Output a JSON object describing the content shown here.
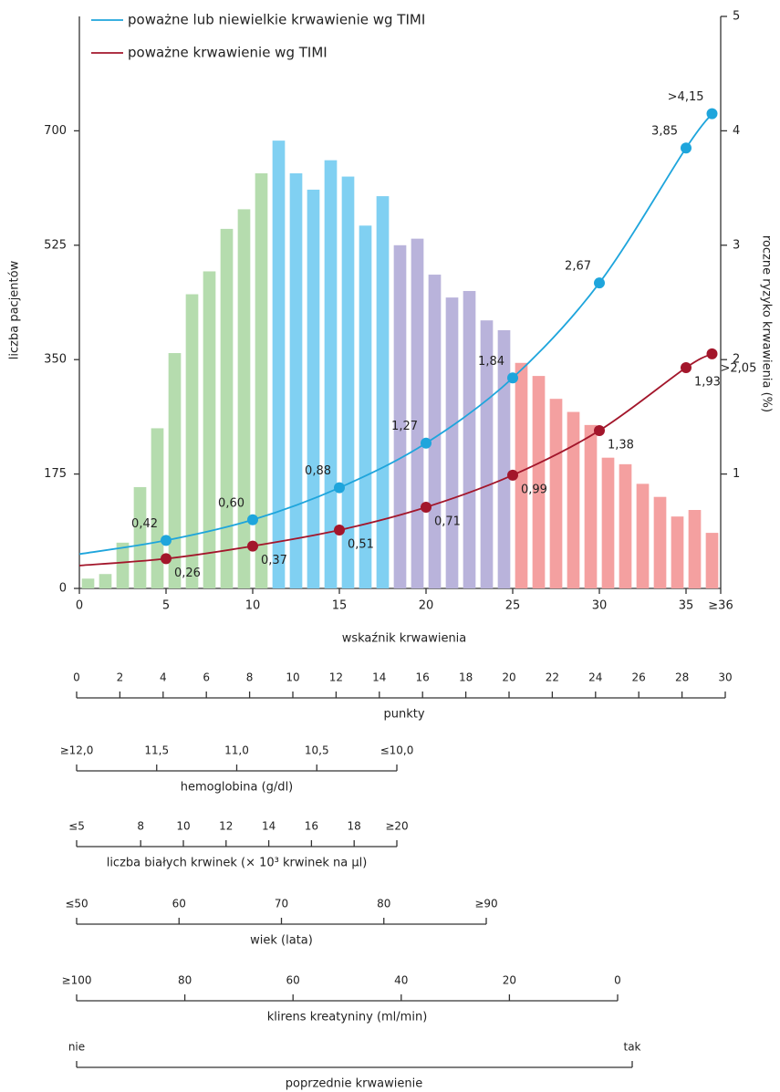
{
  "chart_data": {
    "type": "histogram",
    "xlabel": "wskaźnik krwawienia",
    "ylabel": "liczba pacjentów",
    "y2label": "roczne ryzyko krwawienia (%)",
    "bins": [
      0,
      1,
      2,
      3,
      4,
      5,
      6,
      7,
      8,
      9,
      10,
      11,
      12,
      13,
      14,
      15,
      16,
      17,
      18,
      19,
      20,
      21,
      22,
      23,
      24,
      25,
      26,
      27,
      28,
      29,
      30,
      31,
      32,
      33,
      34,
      35,
      36,
      37
    ],
    "counts": [
      15,
      22,
      70,
      155,
      245,
      360,
      450,
      485,
      550,
      580,
      635,
      685,
      635,
      610,
      655,
      630,
      555,
      600,
      525,
      535,
      480,
      445,
      455,
      410,
      395,
      345,
      325,
      290,
      270,
      250,
      200,
      190,
      160,
      140,
      110,
      120,
      85
    ],
    "bar_colors": [
      "#b5dcae",
      "#b5dcae",
      "#b5dcae",
      "#b5dcae",
      "#b5dcae",
      "#b5dcae",
      "#b5dcae",
      "#b5dcae",
      "#b5dcae",
      "#b5dcae",
      "#b5dcae",
      "#80d0f2",
      "#80d0f2",
      "#80d0f2",
      "#80d0f2",
      "#80d0f2",
      "#80d0f2",
      "#80d0f2",
      "#b9b3db",
      "#b9b3db",
      "#b9b3db",
      "#b9b3db",
      "#b9b3db",
      "#b9b3db",
      "#b9b3db",
      "#f4a0a0",
      "#f4a0a0",
      "#f4a0a0",
      "#f4a0a0",
      "#f4a0a0",
      "#f4a0a0",
      "#f4a0a0",
      "#f4a0a0",
      "#f4a0a0",
      "#f4a0a0",
      "#f4a0a0",
      "#f4a0a0"
    ],
    "series": [
      {
        "name": "poważne lub niewielkie krwawienie wg TIMI",
        "color": "#1ea5dc",
        "axis": "y2",
        "x": [
          0,
          5,
          10,
          15,
          20,
          25,
          30,
          35,
          36.5
        ],
        "values": [
          0.3,
          0.42,
          0.6,
          0.88,
          1.27,
          1.84,
          2.67,
          3.85,
          4.15
        ],
        "value_labels": [
          null,
          "0,42",
          "0,60",
          "0,88",
          "1,27",
          "1,84",
          "2,67",
          "3,85",
          ">4,15"
        ]
      },
      {
        "name": "poważne krwawienie wg TIMI",
        "color": "#a3162b",
        "axis": "y2",
        "x": [
          0,
          5,
          10,
          15,
          20,
          25,
          30,
          35,
          36.5
        ],
        "values": [
          0.2,
          0.26,
          0.37,
          0.51,
          0.71,
          0.99,
          1.38,
          1.93,
          2.05
        ],
        "value_labels": [
          null,
          "0,26",
          "0,37",
          "0,51",
          "0,71",
          "0,99",
          "1,38",
          "1,93",
          ">2,05"
        ]
      }
    ],
    "xlim": [
      0,
      37
    ],
    "xticks": [
      0,
      5,
      10,
      15,
      20,
      25,
      30,
      35,
      {
        "value": 37,
        "label": "≥36"
      }
    ],
    "ylim": [
      0,
      875
    ],
    "yticks": [
      0,
      175,
      350,
      525,
      700
    ],
    "y2lim": [
      0,
      5
    ],
    "y2ticks": [
      1,
      2,
      3,
      4,
      5
    ],
    "scales": [
      {
        "title": "punkty",
        "lim": [
          0,
          30
        ],
        "ticks": [
          0,
          2,
          4,
          6,
          8,
          10,
          12,
          14,
          16,
          18,
          20,
          22,
          24,
          26,
          28,
          30
        ]
      },
      {
        "title": "hemoglobina (g/dl)",
        "lim": [
          12,
          10
        ],
        "ticks": [
          {
            "value": 12,
            "label": "≥12,0"
          },
          {
            "value": 11.5,
            "label": "11,5"
          },
          {
            "value": 11,
            "label": "11,0"
          },
          {
            "value": 10.5,
            "label": "10,5"
          },
          {
            "value": 10,
            "label": "≤10,0"
          }
        ]
      },
      {
        "title": "liczba białych krwinek (× 10³ krwinek na µl)",
        "lim": [
          5,
          20
        ],
        "ticks": [
          {
            "value": 5,
            "label": "≤5"
          },
          8,
          10,
          12,
          14,
          16,
          18,
          {
            "value": 20,
            "label": "≥20"
          }
        ]
      },
      {
        "title": "wiek (lata)",
        "lim": [
          50,
          90
        ],
        "ticks": [
          {
            "value": 50,
            "label": "≤50"
          },
          60,
          70,
          80,
          {
            "value": 90,
            "label": "≥90"
          }
        ]
      },
      {
        "title": "klirens kreatyniny (ml/min)",
        "lim": [
          100,
          0
        ],
        "ticks": [
          {
            "value": 100,
            "label": "≥100"
          },
          80,
          60,
          40,
          20,
          0
        ]
      },
      {
        "title": "poprzednie krwawienie",
        "lim": [
          0,
          1
        ],
        "ticks": [
          {
            "value": 0,
            "label": "nie"
          },
          {
            "value": 1,
            "label": "tak"
          }
        ]
      }
    ]
  }
}
